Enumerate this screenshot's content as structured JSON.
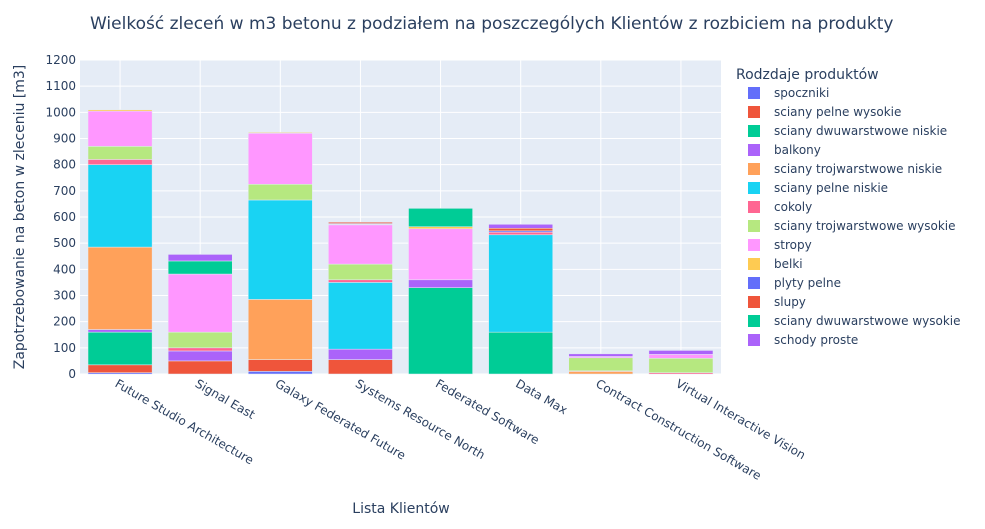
{
  "chart_data": {
    "type": "bar",
    "stacked": true,
    "title": "Wielkość zleceń w m3 betonu z podziałem na poszczególych Klientów z rozbiciem na produkty",
    "xlabel": "Lista Klientów",
    "ylabel": "Zapotrzebowanie na beton w zleceniu [m3]",
    "ylim": [
      0,
      1200
    ],
    "yticks": [
      0,
      100,
      200,
      300,
      400,
      500,
      600,
      700,
      800,
      900,
      1000,
      1100,
      1200
    ],
    "grid": true,
    "legend_title": "Rodzdaje produktów",
    "legend_position": "right",
    "categories": [
      "Future Studio Architecture",
      "Signal East",
      "Galaxy Federated Future",
      "Systems Resource North",
      "Federated Software",
      "Data Max",
      "Contract Construction Software",
      "Virtual Interactive Vision"
    ],
    "series": [
      {
        "name": "spoczniki",
        "color": "#636EFA",
        "values": [
          5,
          0,
          10,
          0,
          0,
          0,
          0,
          0
        ]
      },
      {
        "name": "sciany pelne wysokie",
        "color": "#EF553B",
        "values": [
          30,
          50,
          45,
          55,
          0,
          0,
          0,
          0
        ]
      },
      {
        "name": "sciany dwuwarstwowe niskie",
        "color": "#00CC96",
        "values": [
          125,
          0,
          0,
          0,
          330,
          160,
          0,
          0
        ]
      },
      {
        "name": "balkony",
        "color": "#AB63FA",
        "values": [
          10,
          38,
          0,
          40,
          30,
          0,
          0,
          0
        ]
      },
      {
        "name": "sciany trojwarstwowe niskie",
        "color": "#FFA15A",
        "values": [
          315,
          0,
          230,
          0,
          0,
          0,
          10,
          0
        ]
      },
      {
        "name": "sciany pelne niskie",
        "color": "#19D3F3",
        "values": [
          315,
          0,
          380,
          255,
          0,
          372,
          0,
          0
        ]
      },
      {
        "name": "cokoly",
        "color": "#FF6692",
        "values": [
          20,
          12,
          0,
          10,
          0,
          10,
          2,
          5
        ]
      },
      {
        "name": "sciany trojwarstwowe wysokie",
        "color": "#B6E880",
        "values": [
          50,
          60,
          60,
          60,
          0,
          0,
          50,
          55
        ]
      },
      {
        "name": "stropy",
        "color": "#FF97FF",
        "values": [
          135,
          222,
          195,
          150,
          195,
          0,
          5,
          15
        ]
      },
      {
        "name": "belki",
        "color": "#FECB52",
        "values": [
          5,
          0,
          3,
          2,
          8,
          0,
          0,
          0
        ]
      },
      {
        "name": "plyty pelne",
        "color": "#636EFA",
        "values": [
          0,
          0,
          0,
          3,
          0,
          5,
          0,
          0
        ]
      },
      {
        "name": "slupy",
        "color": "#EF553B",
        "values": [
          0,
          0,
          0,
          5,
          0,
          10,
          0,
          0
        ]
      },
      {
        "name": "sciany dwuwarstwowe wysokie",
        "color": "#00CC96",
        "values": [
          0,
          50,
          0,
          0,
          70,
          0,
          0,
          0
        ]
      },
      {
        "name": "schody proste",
        "color": "#AB63FA",
        "values": [
          0,
          25,
          0,
          0,
          0,
          15,
          10,
          15
        ]
      }
    ]
  }
}
